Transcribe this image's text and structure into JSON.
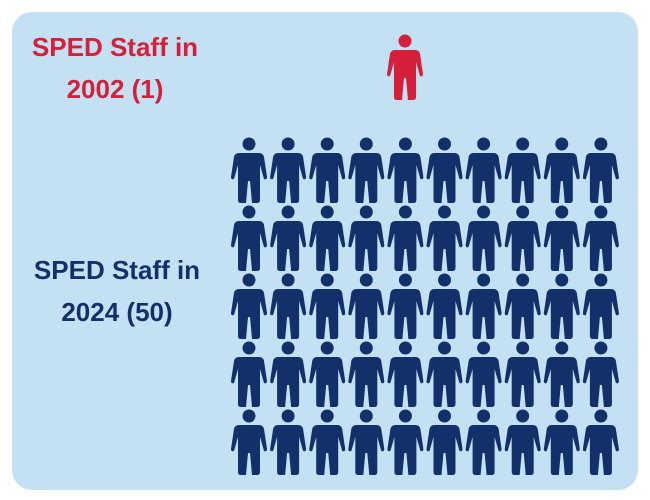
{
  "chart_data": {
    "type": "pictograph",
    "series": [
      {
        "name": "SPED Staff in 2002 (1)",
        "color": "#d61f3a",
        "values": [
          1
        ]
      },
      {
        "name": "SPED Staff in 2024 (50)",
        "color": "#14306b",
        "values": [
          50
        ]
      }
    ]
  }
}
